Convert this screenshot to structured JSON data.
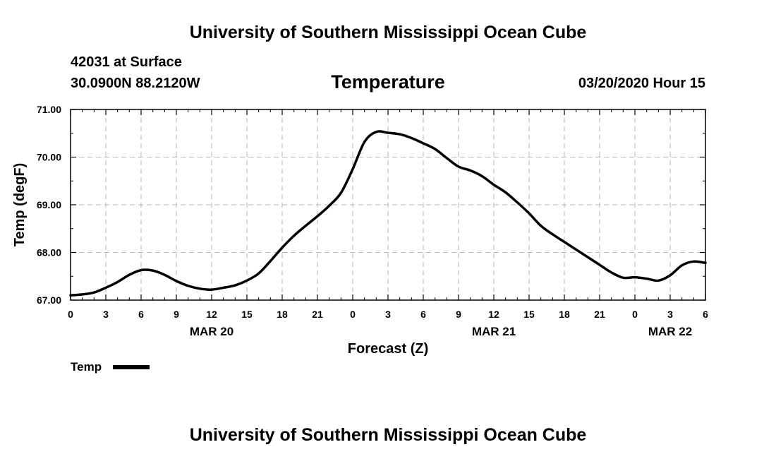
{
  "header": {
    "title": "University of Southern Mississippi Ocean Cube",
    "station": "42031 at Surface",
    "coords": "30.0900N 88.2120W",
    "datetime": "03/20/2020 Hour 15"
  },
  "footer": {
    "title": "University of Southern Mississippi Ocean Cube"
  },
  "chart_data": {
    "type": "line",
    "title": "Temperature",
    "xlabel": "Forecast (Z)",
    "ylabel": "Temp (degF)",
    "ylim": [
      67.0,
      71.0
    ],
    "xlim_hours": [
      0,
      54
    ],
    "x_ticks": [
      {
        "h": 0,
        "label": "0"
      },
      {
        "h": 3,
        "label": "3"
      },
      {
        "h": 6,
        "label": "6"
      },
      {
        "h": 9,
        "label": "9"
      },
      {
        "h": 12,
        "label": "12"
      },
      {
        "h": 15,
        "label": "15"
      },
      {
        "h": 18,
        "label": "18"
      },
      {
        "h": 21,
        "label": "21"
      },
      {
        "h": 24,
        "label": "0"
      },
      {
        "h": 27,
        "label": "3"
      },
      {
        "h": 30,
        "label": "6"
      },
      {
        "h": 33,
        "label": "9"
      },
      {
        "h": 36,
        "label": "12"
      },
      {
        "h": 39,
        "label": "15"
      },
      {
        "h": 42,
        "label": "18"
      },
      {
        "h": 45,
        "label": "21"
      },
      {
        "h": 48,
        "label": "0"
      },
      {
        "h": 51,
        "label": "3"
      },
      {
        "h": 54,
        "label": "6"
      }
    ],
    "y_ticks": [
      {
        "v": 67.0,
        "label": "67.00"
      },
      {
        "v": 68.0,
        "label": "68.00"
      },
      {
        "v": 69.0,
        "label": "69.00"
      },
      {
        "v": 70.0,
        "label": "70.00"
      },
      {
        "v": 71.0,
        "label": "71.00"
      }
    ],
    "day_labels": [
      {
        "h": 12,
        "label": "MAR 20"
      },
      {
        "h": 36,
        "label": "MAR 21"
      },
      {
        "h": 51,
        "label": "MAR 22"
      }
    ],
    "grid": true,
    "legend_position": "bottom-left",
    "series": [
      {
        "name": "Temp",
        "color": "#000000",
        "x": [
          0,
          1,
          2,
          3,
          4,
          5,
          6,
          7,
          8,
          9,
          10,
          11,
          12,
          13,
          14,
          15,
          16,
          17,
          18,
          19,
          20,
          21,
          22,
          23,
          24,
          25,
          26,
          27,
          28,
          29,
          30,
          31,
          32,
          33,
          34,
          35,
          36,
          37,
          38,
          39,
          40,
          41,
          42,
          43,
          44,
          45,
          46,
          47,
          48,
          49,
          50,
          51,
          52,
          53,
          54
        ],
        "values": [
          67.1,
          67.12,
          67.16,
          67.26,
          67.38,
          67.53,
          67.63,
          67.62,
          67.53,
          67.4,
          67.3,
          67.24,
          67.22,
          67.26,
          67.31,
          67.41,
          67.56,
          67.82,
          68.1,
          68.35,
          68.56,
          68.76,
          68.98,
          69.25,
          69.75,
          70.32,
          70.53,
          70.51,
          70.48,
          70.4,
          70.29,
          70.17,
          69.98,
          69.8,
          69.72,
          69.6,
          69.42,
          69.26,
          69.05,
          68.82,
          68.56,
          68.38,
          68.22,
          68.06,
          67.9,
          67.74,
          67.58,
          67.47,
          67.48,
          67.45,
          67.41,
          67.52,
          67.73,
          67.81,
          67.78
        ]
      }
    ]
  }
}
